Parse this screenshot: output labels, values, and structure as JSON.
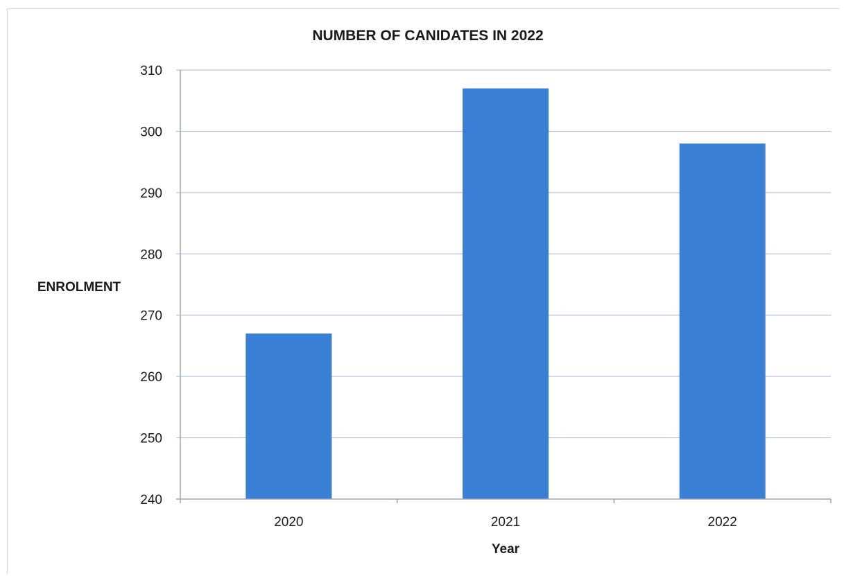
{
  "chart_data": {
    "type": "bar",
    "title": "NUMBER OF CANIDATES  IN 2022",
    "xlabel": "Year",
    "ylabel": "ENROLMENT",
    "categories": [
      "2020",
      "2021",
      "2022"
    ],
    "values": [
      267,
      307,
      298
    ],
    "ylim": [
      240,
      310
    ],
    "yticks": [
      240,
      250,
      260,
      270,
      280,
      290,
      300,
      310
    ],
    "grid": true,
    "legend": "none",
    "bar_color": "#3a7fd6"
  }
}
